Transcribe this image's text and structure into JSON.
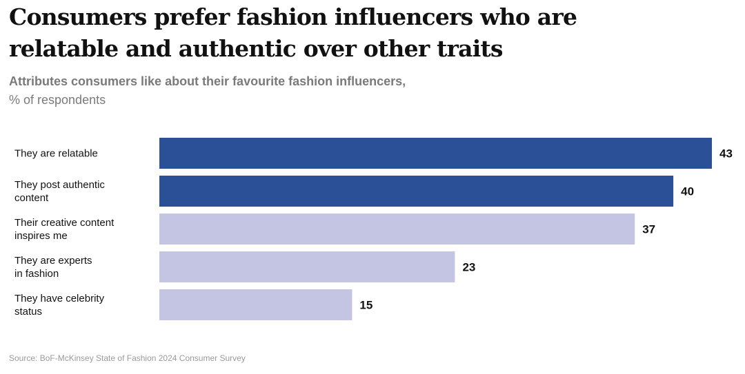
{
  "title_line1": "Consumers prefer fashion influencers who are",
  "title_line2": "relatable and authentic over other traits",
  "subtitle_line1": "Attributes consumers like about their favourite fashion influencers,",
  "subtitle_line2": "% of respondents",
  "source": "Source: BoF-McKinsey State of Fashion 2024 Consumer Survey",
  "colors": {
    "highlight": "#2b5098",
    "muted": "#c3c5e2",
    "label_text": "#111111",
    "value_text": "#111111"
  },
  "chart_data": {
    "type": "bar",
    "orientation": "horizontal",
    "title": "Consumers prefer fashion influencers who are relatable and authentic over other traits",
    "subtitle": "Attributes consumers like about their favourite fashion influencers, % of respondents",
    "categories": [
      [
        "They are relatable"
      ],
      [
        "They post authentic",
        "content"
      ],
      [
        "Their creative content",
        "inspires me"
      ],
      [
        "They are experts",
        "in fashion"
      ],
      [
        "They have celebrity",
        "status"
      ]
    ],
    "values": [
      43,
      40,
      37,
      23,
      15
    ],
    "highlighted": [
      true,
      true,
      false,
      false,
      false
    ],
    "data_labels": true,
    "xlim": [
      0,
      43
    ],
    "grid": false,
    "xlabel": "",
    "ylabel": ""
  }
}
